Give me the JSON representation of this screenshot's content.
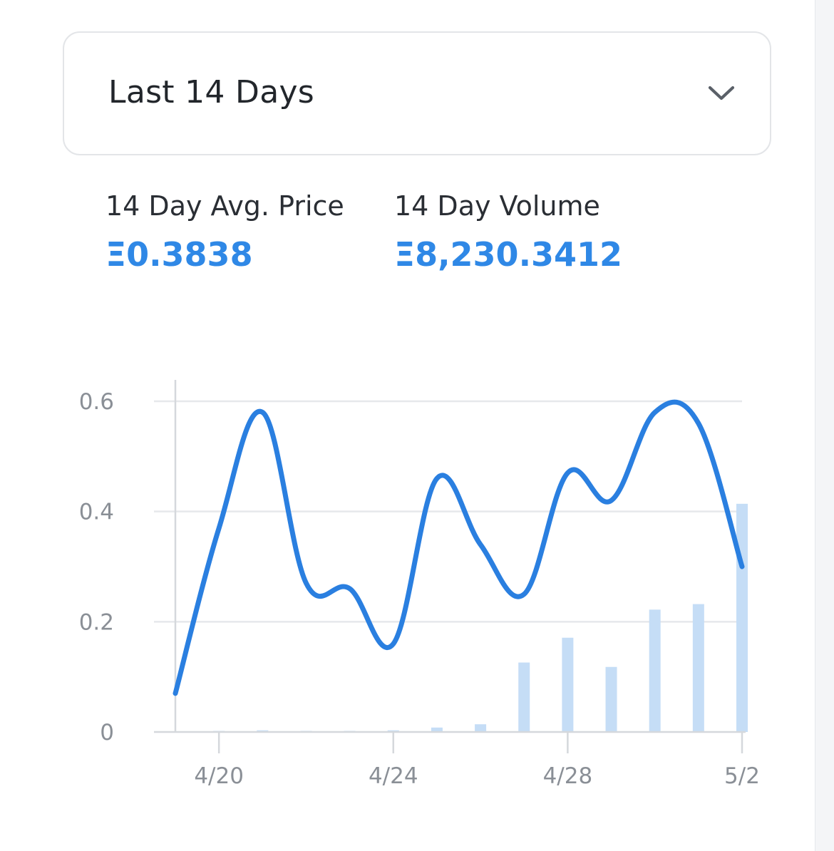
{
  "filter": {
    "selected": "Last 14 Days",
    "chevron_icon": "chevron-down-icon"
  },
  "stats": {
    "avg_price_label": "14 Day Avg. Price",
    "avg_price_value": "Ξ0.3838",
    "volume_label": "14 Day Volume",
    "volume_value": "Ξ8,230.3412"
  },
  "colors": {
    "accent": "#2f88e6",
    "line": "#2a7fe0",
    "bar": "#c5ddf6",
    "grid": "#e6e8eb",
    "axis": "#d5d8dc"
  },
  "chart_data": {
    "type": "line",
    "title": "",
    "xlabel": "",
    "ylabel": "",
    "x": [
      "4/19",
      "4/20",
      "4/21",
      "4/22",
      "4/23",
      "4/24",
      "4/25",
      "4/26",
      "4/27",
      "4/28",
      "4/29",
      "4/30",
      "5/1",
      "5/2"
    ],
    "x_tick_labels": [
      "4/20",
      "4/24",
      "4/28",
      "5/2"
    ],
    "y_ticks": [
      "0",
      "0.2",
      "0.4",
      "0.6"
    ],
    "ylim": [
      0,
      0.6
    ],
    "grid": true,
    "series": [
      {
        "kind": "line",
        "values": [
          0.07,
          0.37,
          0.58,
          0.27,
          0.26,
          0.16,
          0.46,
          0.34,
          0.25,
          0.47,
          0.42,
          0.58,
          0.56,
          0.3
        ]
      },
      {
        "kind": "bar",
        "values": [
          0,
          0.002,
          0.003,
          0.002,
          0.002,
          0.003,
          0.008,
          0.014,
          0.126,
          0.171,
          0.118,
          0.222,
          0.232,
          0.414
        ]
      }
    ]
  }
}
